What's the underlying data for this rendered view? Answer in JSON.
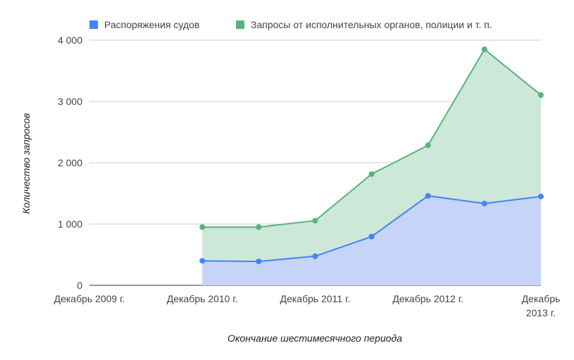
{
  "chart_data": {
    "type": "area",
    "stacked": true,
    "xlabel": "Окончание шестимесячного периода",
    "ylabel": "Количество запросов",
    "ylim": [
      0,
      4000
    ],
    "yticks": [
      0,
      1000,
      2000,
      3000,
      4000
    ],
    "ytick_labels": [
      "0",
      "1 000",
      "2 000",
      "3 000",
      "4 000"
    ],
    "x_tick_labels": [
      {
        "lines": [
          "Декабрь 2009 г."
        ],
        "index": 0
      },
      {
        "lines": [
          "Декабрь 2010 г."
        ],
        "index": 2
      },
      {
        "lines": [
          "Декабрь 2011 г."
        ],
        "index": 4
      },
      {
        "lines": [
          "Декабрь 2012 г."
        ],
        "index": 6
      },
      {
        "lines": [
          "Декабрь",
          "2013 г."
        ],
        "index": 8
      }
    ],
    "x_count": 9,
    "legend_position": "top",
    "grid": true,
    "series": [
      {
        "name": "Распоряжения судов",
        "color": "#4285f4",
        "fill": "#c6d4f7",
        "values": [
          null,
          null,
          400,
          390,
          475,
          795,
          1460,
          1335,
          1450
        ]
      },
      {
        "name": "Запросы от исполнительных органов, полиции и т. п.",
        "color": "#57b47a",
        "fill": "#cde7d8",
        "cumulative": [
          null,
          null,
          950,
          950,
          1055,
          1815,
          2285,
          3850,
          3105
        ]
      }
    ]
  }
}
